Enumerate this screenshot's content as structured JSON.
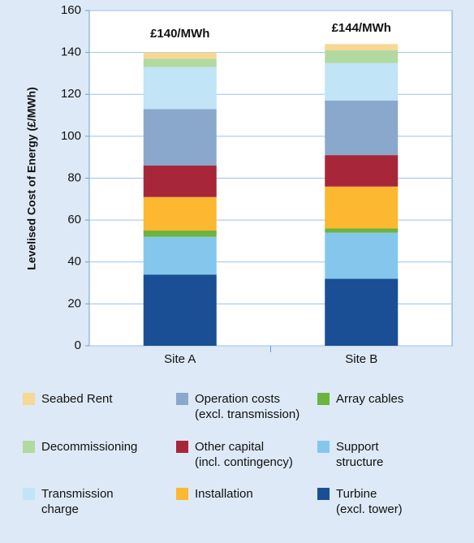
{
  "chart_data": {
    "type": "stacked_bar",
    "y_label": "Levelised Cost of Energy (£/MWh)",
    "categories": [
      "Site A",
      "Site B"
    ],
    "annotations": [
      "£140/MWh",
      "£144/MWh"
    ],
    "ylim": [
      0,
      160
    ],
    "yticks": [
      0,
      20,
      40,
      60,
      80,
      100,
      120,
      140,
      160
    ],
    "grid": true,
    "series": [
      {
        "name": "Turbine\n(excl. tower)",
        "color": "#1a4f96",
        "values": [
          34,
          32
        ]
      },
      {
        "name": "Support\nstructure",
        "color": "#85c7ec",
        "values": [
          18,
          22
        ]
      },
      {
        "name": "Array cables",
        "color": "#6db33f",
        "values": [
          3,
          2
        ]
      },
      {
        "name": "Installation",
        "color": "#fbb830",
        "values": [
          16,
          20
        ]
      },
      {
        "name": "Other capital\n(incl. contingency)",
        "color": "#a8263a",
        "values": [
          15,
          15
        ]
      },
      {
        "name": "Operation costs\n(excl. transmission)",
        "color": "#8aa8cc",
        "values": [
          27,
          26
        ]
      },
      {
        "name": "Transmission\ncharge",
        "color": "#c1e4f6",
        "values": [
          20,
          18
        ]
      },
      {
        "name": "Decommissioning",
        "color": "#b2d9a0",
        "values": [
          4,
          6
        ]
      },
      {
        "name": "Seabed Rent",
        "color": "#f7d795",
        "values": [
          3,
          3
        ]
      }
    ]
  }
}
